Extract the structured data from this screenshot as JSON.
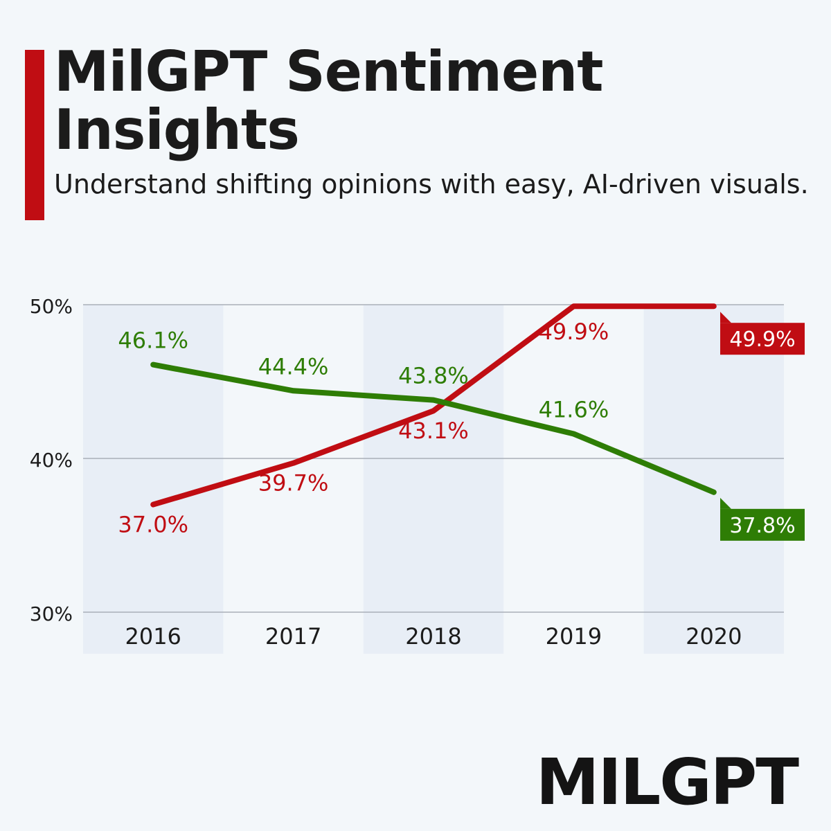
{
  "header": {
    "title": "MilGPT Sentiment Insights",
    "subtitle": "Understand shifting opinions with easy, AI-driven visuals."
  },
  "brand": {
    "logo_text": "MILGPT"
  },
  "colors": {
    "accent": "#c00d13",
    "series_red": "#c00d13",
    "series_green": "#2e7d05",
    "band": "#e8eef6",
    "grid": "#a9afb8",
    "text": "#1b1b1b",
    "background": "#f3f7fa"
  },
  "chart_data": {
    "type": "line",
    "categories": [
      "2016",
      "2017",
      "2018",
      "2019",
      "2020"
    ],
    "ylim": [
      30,
      50
    ],
    "yticks": [
      {
        "value": 30,
        "label": "30%"
      },
      {
        "value": 40,
        "label": "40%"
      },
      {
        "value": 50,
        "label": "50%"
      }
    ],
    "grid": true,
    "alternating_column_bands": true,
    "series": [
      {
        "color": "#c00d13",
        "values": [
          37.0,
          39.7,
          43.1,
          49.9,
          49.9
        ],
        "labels": [
          "37.0%",
          "39.7%",
          "43.1%",
          "49.9%",
          "49.9%"
        ]
      },
      {
        "color": "#2e7d05",
        "values": [
          46.1,
          44.4,
          43.8,
          41.6,
          37.8
        ],
        "labels": [
          "46.1%",
          "44.4%",
          "43.8%",
          "41.6%",
          "37.8%"
        ]
      }
    ]
  }
}
